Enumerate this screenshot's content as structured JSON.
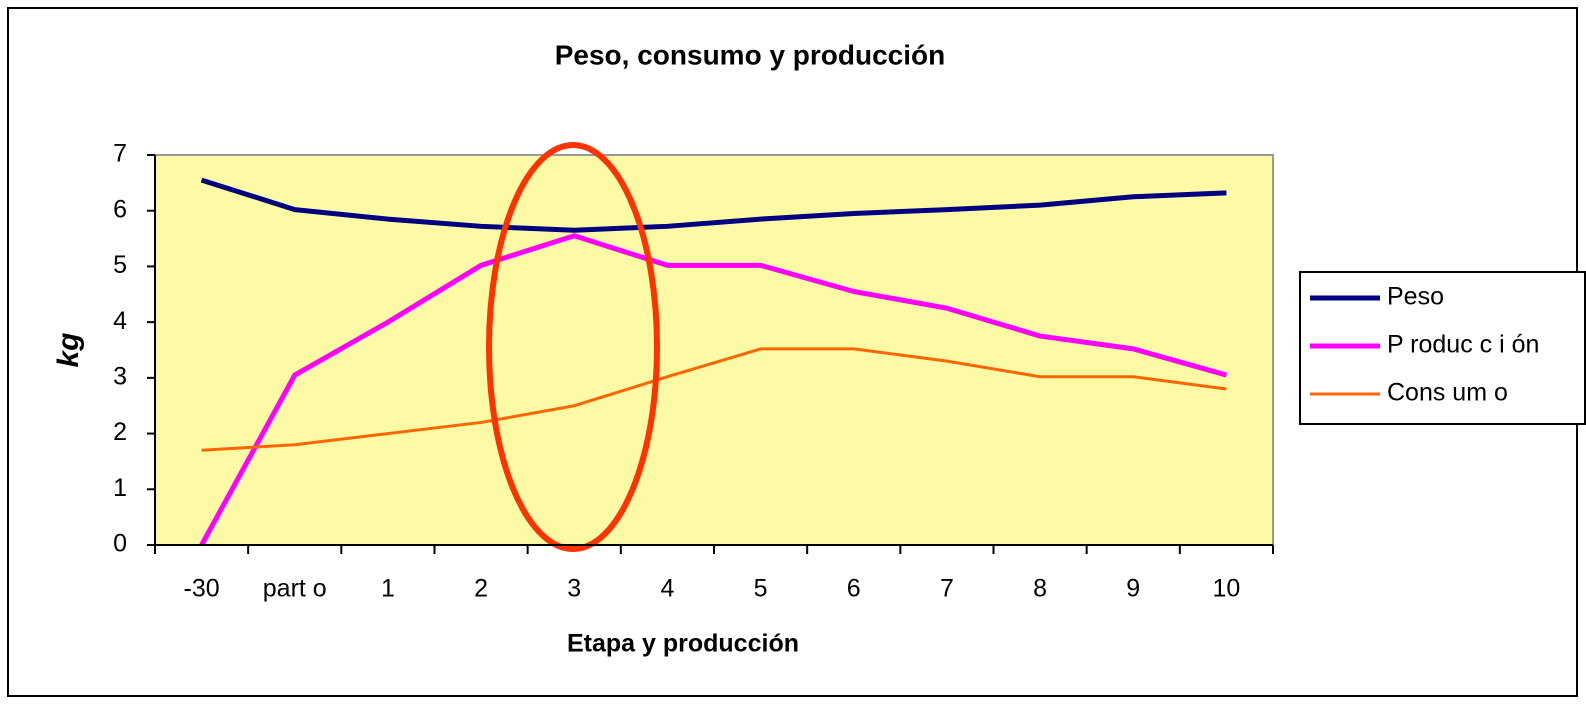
{
  "chart_data": {
    "type": "line",
    "title": "Peso, consumo y producción",
    "x_label": "Etapa y producción",
    "y_label": "kg",
    "categories": [
      "-30",
      "part o",
      "1",
      "2",
      "3",
      "4",
      "5",
      "6",
      "7",
      "8",
      "9",
      "10"
    ],
    "series": [
      {
        "name": "Peso",
        "color": "#000080",
        "values": [
          6.55,
          6.02,
          5.85,
          5.72,
          5.65,
          5.72,
          5.85,
          5.95,
          6.02,
          6.1,
          6.25,
          6.32
        ]
      },
      {
        "name": "P roduc c i ón",
        "color": "#ff00ff",
        "values": [
          0,
          3.05,
          4.0,
          5.02,
          5.55,
          5.02,
          5.02,
          4.55,
          4.25,
          3.75,
          3.52,
          3.05
        ]
      },
      {
        "name": "Cons um o",
        "color": "#ff6600",
        "values": [
          1.7,
          1.8,
          2.0,
          2.2,
          2.5,
          3.02,
          3.52,
          3.52,
          3.3,
          3.02,
          3.02,
          2.8
        ]
      }
    ],
    "ylim": [
      0,
      7
    ],
    "yticks": [
      0,
      1,
      2,
      3,
      4,
      5,
      6,
      7
    ],
    "legend": "right"
  }
}
